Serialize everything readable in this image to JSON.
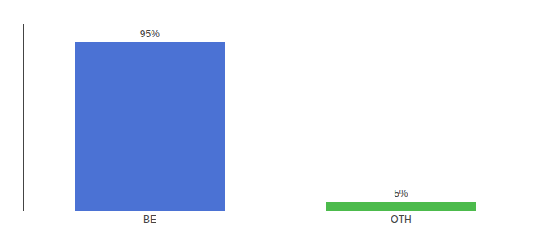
{
  "chart_data": {
    "type": "bar",
    "categories": [
      "BE",
      "OTH"
    ],
    "values": [
      95,
      5
    ],
    "value_labels": [
      "95%",
      "5%"
    ],
    "colors": [
      "#4b72d4",
      "#4cbb4c"
    ],
    "ylim": [
      0,
      105
    ],
    "grid": false,
    "data_labels": true,
    "tick_labels": "x"
  }
}
